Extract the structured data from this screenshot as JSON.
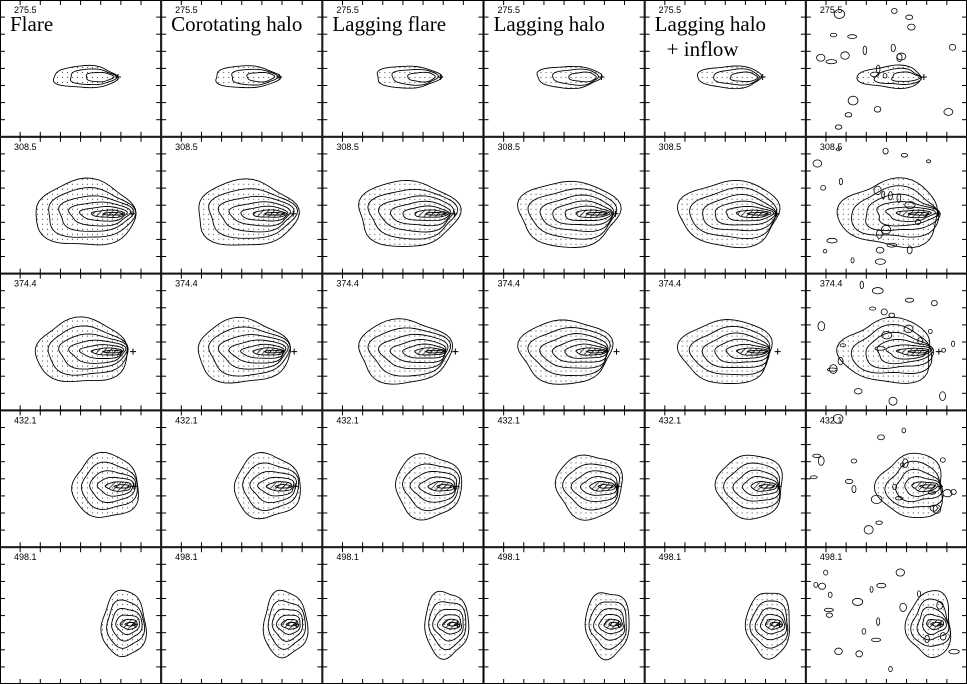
{
  "titles": [
    [
      "Flare"
    ],
    [
      "Corotating halo"
    ],
    [
      "Lagging flare"
    ],
    [
      "Lagging halo"
    ],
    [
      "Lagging halo",
      "+ inflow"
    ]
  ],
  "rows": [
    "275.5",
    "308.5",
    "374.4",
    "432.1",
    "498.1"
  ]
}
